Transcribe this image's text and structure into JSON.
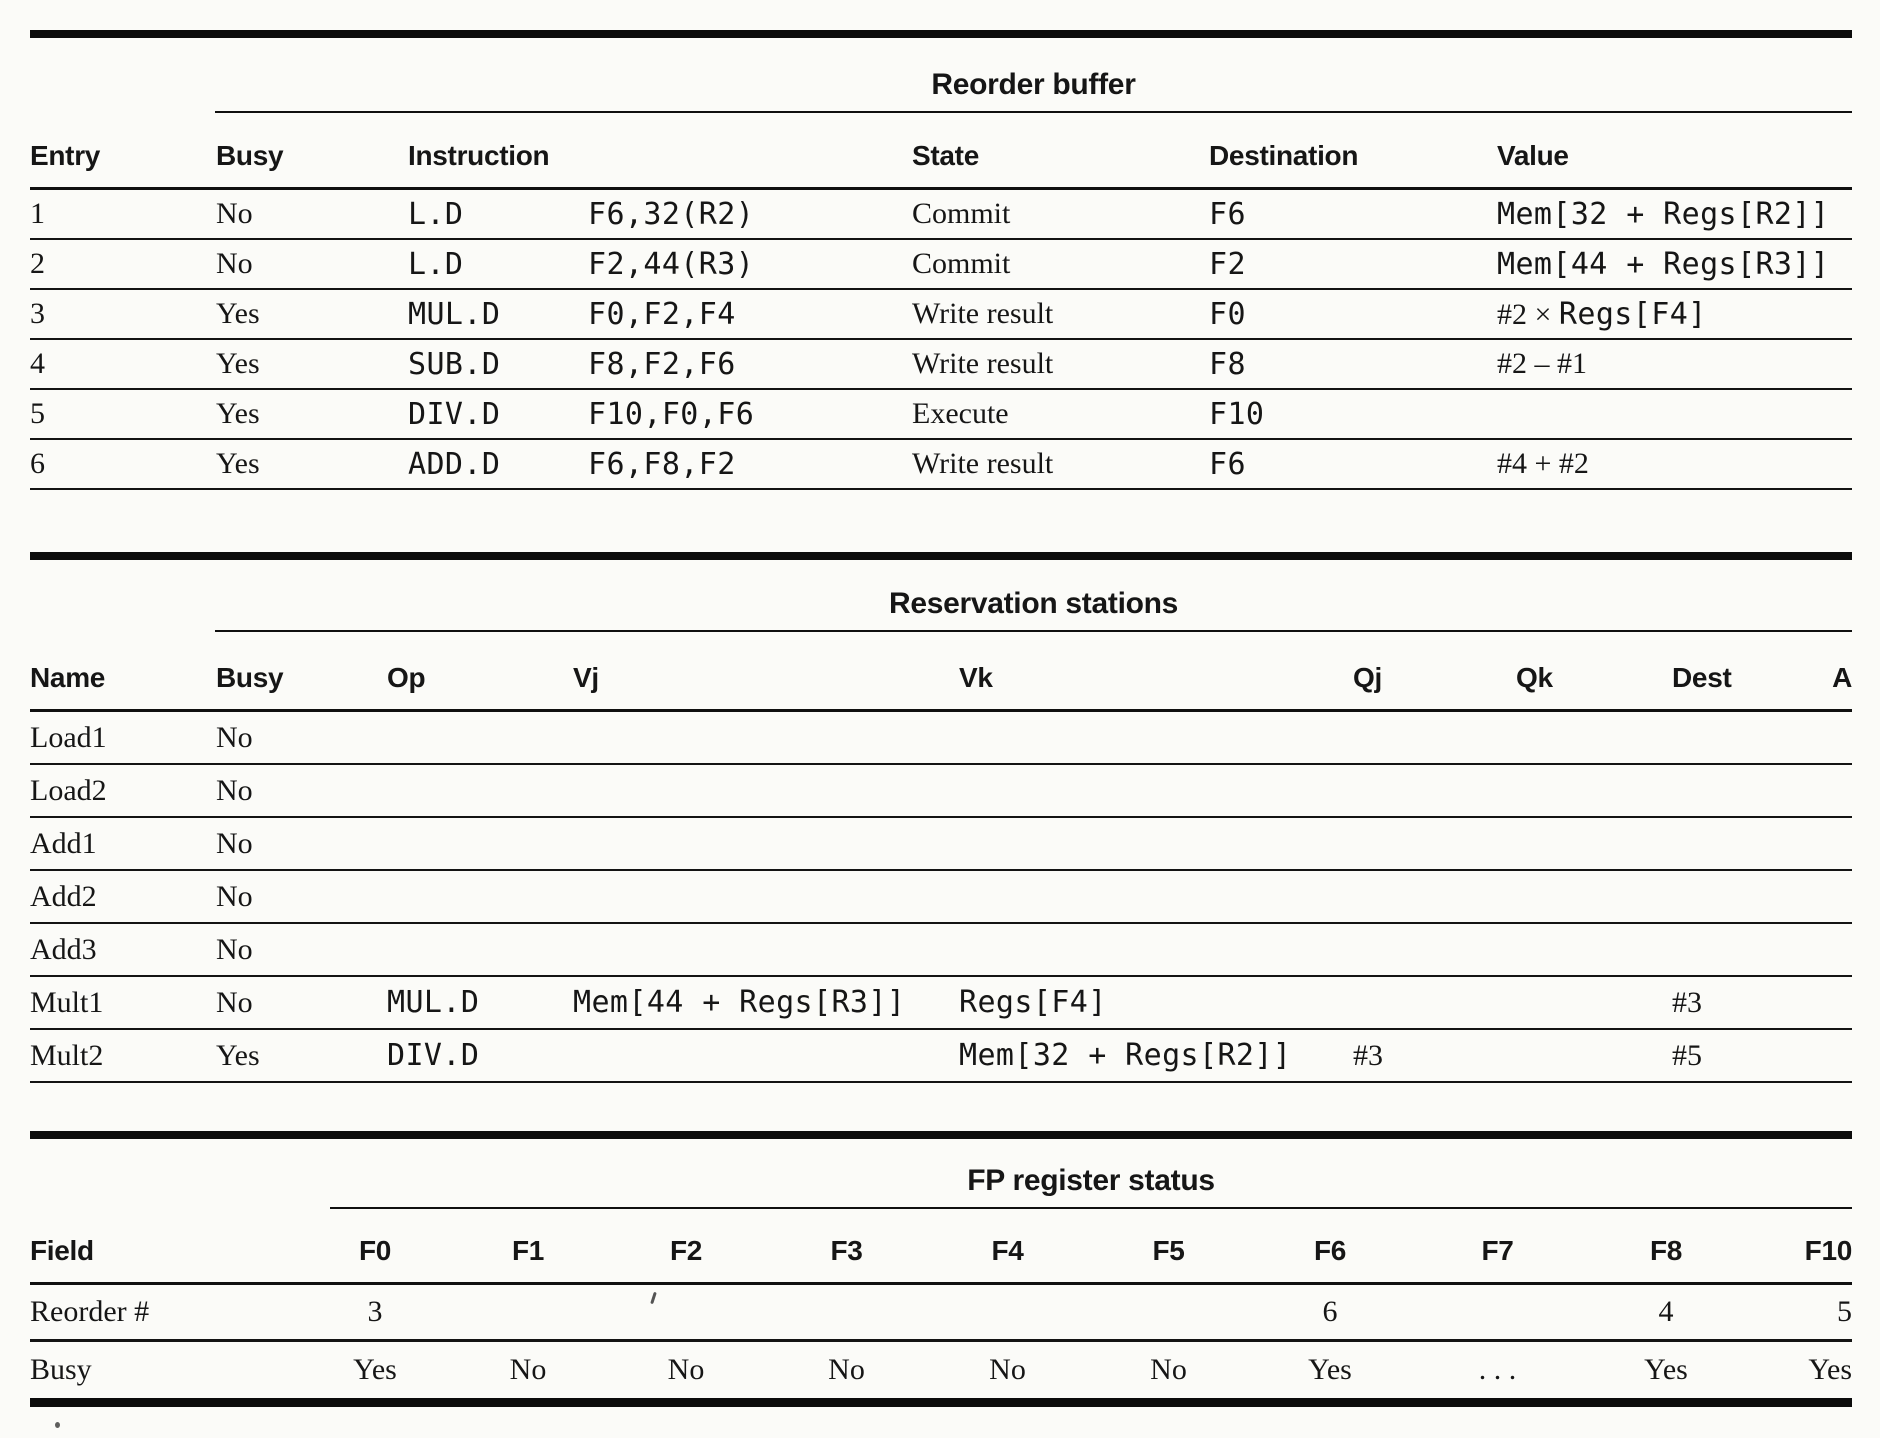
{
  "colors": {
    "ink": "#161616",
    "rule": "#0c0c0c",
    "paper": "#fbfbf8"
  },
  "reorder_buffer": {
    "title": "Reorder buffer",
    "headers": {
      "entry": "Entry",
      "busy": "Busy",
      "instruction": "Instruction",
      "state": "State",
      "destination": "Destination",
      "value": "Value"
    },
    "rows": [
      {
        "entry": "1",
        "busy": "No",
        "op": "L.D",
        "operands": "F6,32(R2)",
        "state": "Commit",
        "destination": "F6",
        "value": [
          {
            "text": "Mem[32 + Regs[R2]]",
            "font": "code"
          }
        ]
      },
      {
        "entry": "2",
        "busy": "No",
        "op": "L.D",
        "operands": "F2,44(R3)",
        "state": "Commit",
        "destination": "F2",
        "value": [
          {
            "text": "Mem[44 + Regs[R3]]",
            "font": "code"
          }
        ]
      },
      {
        "entry": "3",
        "busy": "Yes",
        "op": "MUL.D",
        "operands": "F0,F2,F4",
        "state": "Write result",
        "destination": "F0",
        "value": [
          {
            "text": "#2 × ",
            "font": "roman"
          },
          {
            "text": "Regs[F4]",
            "font": "code"
          }
        ]
      },
      {
        "entry": "4",
        "busy": "Yes",
        "op": "SUB.D",
        "operands": "F8,F2,F6",
        "state": "Write result",
        "destination": "F8",
        "value": [
          {
            "text": "#2 – #1",
            "font": "roman"
          }
        ]
      },
      {
        "entry": "5",
        "busy": "Yes",
        "op": "DIV.D",
        "operands": "F10,F0,F6",
        "state": "Execute",
        "destination": "F10",
        "value": []
      },
      {
        "entry": "6",
        "busy": "Yes",
        "op": "ADD.D",
        "operands": "F6,F8,F2",
        "state": "Write result",
        "destination": "F6",
        "value": [
          {
            "text": "#4 + #2",
            "font": "roman"
          }
        ]
      }
    ]
  },
  "reservation_stations": {
    "title": "Reservation stations",
    "headers": {
      "name": "Name",
      "busy": "Busy",
      "op": "Op",
      "vj": "Vj",
      "vk": "Vk",
      "qj": "Qj",
      "qk": "Qk",
      "dest": "Dest",
      "a": "A"
    },
    "rows": [
      {
        "name": "Load1",
        "busy": "No",
        "op": "",
        "vj": "",
        "vk": "",
        "qj": "",
        "qk": "",
        "dest": "",
        "a": ""
      },
      {
        "name": "Load2",
        "busy": "No",
        "op": "",
        "vj": "",
        "vk": "",
        "qj": "",
        "qk": "",
        "dest": "",
        "a": ""
      },
      {
        "name": "Add1",
        "busy": "No",
        "op": "",
        "vj": "",
        "vk": "",
        "qj": "",
        "qk": "",
        "dest": "",
        "a": ""
      },
      {
        "name": "Add2",
        "busy": "No",
        "op": "",
        "vj": "",
        "vk": "",
        "qj": "",
        "qk": "",
        "dest": "",
        "a": ""
      },
      {
        "name": "Add3",
        "busy": "No",
        "op": "",
        "vj": "",
        "vk": "",
        "qj": "",
        "qk": "",
        "dest": "",
        "a": ""
      },
      {
        "name": "Mult1",
        "busy": "No",
        "op": "MUL.D",
        "vj": "Mem[44 + Regs[R3]]",
        "vk": "Regs[F4]",
        "qj": "",
        "qk": "",
        "dest": "#3",
        "a": ""
      },
      {
        "name": "Mult2",
        "busy": "Yes",
        "op": "DIV.D",
        "vj": "",
        "vk": "Mem[32 + Regs[R2]]",
        "qj": "#3",
        "qk": "",
        "dest": "#5",
        "a": ""
      }
    ]
  },
  "fp_register_status": {
    "title": "FP register status",
    "field_header": "Field",
    "register_headers": [
      "F0",
      "F1",
      "F2",
      "F3",
      "F4",
      "F5",
      "F6",
      "F7",
      "F8",
      "F10"
    ],
    "rows": [
      {
        "field": "Reorder #",
        "values": [
          "3",
          "",
          "",
          "",
          "",
          "",
          "6",
          "",
          "4",
          "5"
        ]
      },
      {
        "field": "Busy",
        "values": [
          "Yes",
          "No",
          "No",
          "No",
          "No",
          "No",
          "Yes",
          ". . .",
          "Yes",
          "Yes"
        ]
      }
    ]
  }
}
